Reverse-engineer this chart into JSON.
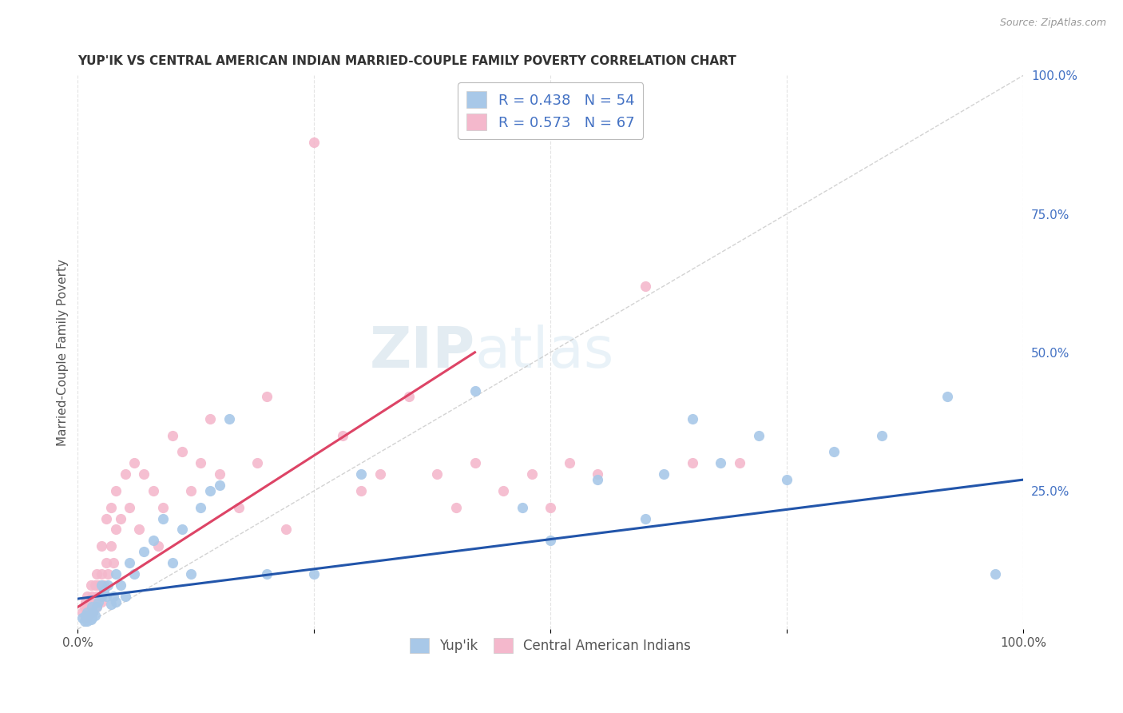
{
  "title": "YUP'IK VS CENTRAL AMERICAN INDIAN MARRIED-COUPLE FAMILY POVERTY CORRELATION CHART",
  "source": "Source: ZipAtlas.com",
  "ylabel": "Married-Couple Family Poverty",
  "xmin": 0.0,
  "xmax": 1.0,
  "ymin": 0.0,
  "ymax": 1.0,
  "xticks": [
    0.0,
    0.25,
    0.5,
    0.75,
    1.0
  ],
  "yticks": [
    0.0,
    0.25,
    0.5,
    0.75,
    1.0
  ],
  "xticklabels": [
    "0.0%",
    "",
    "",
    "",
    "100.0%"
  ],
  "yticklabels_right": [
    "",
    "25.0%",
    "50.0%",
    "75.0%",
    "100.0%"
  ],
  "legend1_label": "R = 0.438   N = 54",
  "legend2_label": "R = 0.573   N = 67",
  "legend_color1": "#a8c8e8",
  "legend_color2": "#f4b8cc",
  "scatter_color_blue": "#a8c8e8",
  "scatter_color_pink": "#f4b8cc",
  "line_color_blue": "#2255aa",
  "line_color_pink": "#dd4466",
  "diagonal_color": "#c8c8c8",
  "background_color": "#ffffff",
  "grid_color": "#e0e0e0",
  "watermark_zip": "ZIP",
  "watermark_atlas": "atlas",
  "title_color": "#333333",
  "label_color": "#555555",
  "right_tick_color": "#4472c4",
  "blue_line_start_x": 0.0,
  "blue_line_start_y": 0.055,
  "blue_line_end_x": 1.0,
  "blue_line_end_y": 0.27,
  "pink_line_start_x": 0.0,
  "pink_line_start_y": 0.04,
  "pink_line_end_x": 0.42,
  "pink_line_end_y": 0.5,
  "blue_x": [
    0.005,
    0.007,
    0.008,
    0.01,
    0.01,
    0.01,
    0.012,
    0.014,
    0.015,
    0.015,
    0.016,
    0.018,
    0.02,
    0.022,
    0.025,
    0.025,
    0.028,
    0.03,
    0.032,
    0.035,
    0.038,
    0.04,
    0.04,
    0.045,
    0.05,
    0.055,
    0.06,
    0.07,
    0.08,
    0.09,
    0.1,
    0.11,
    0.12,
    0.13,
    0.14,
    0.15,
    0.16,
    0.2,
    0.25,
    0.3,
    0.42,
    0.47,
    0.5,
    0.55,
    0.6,
    0.62,
    0.65,
    0.68,
    0.72,
    0.75,
    0.8,
    0.85,
    0.92,
    0.97
  ],
  "blue_y": [
    0.02,
    0.015,
    0.025,
    0.015,
    0.02,
    0.03,
    0.025,
    0.018,
    0.02,
    0.04,
    0.03,
    0.025,
    0.04,
    0.05,
    0.06,
    0.08,
    0.07,
    0.06,
    0.08,
    0.045,
    0.06,
    0.05,
    0.1,
    0.08,
    0.06,
    0.12,
    0.1,
    0.14,
    0.16,
    0.2,
    0.12,
    0.18,
    0.1,
    0.22,
    0.25,
    0.26,
    0.38,
    0.1,
    0.1,
    0.28,
    0.43,
    0.22,
    0.16,
    0.27,
    0.2,
    0.28,
    0.38,
    0.3,
    0.35,
    0.27,
    0.32,
    0.35,
    0.42,
    0.1
  ],
  "pink_x": [
    0.005,
    0.007,
    0.008,
    0.008,
    0.009,
    0.01,
    0.01,
    0.01,
    0.012,
    0.013,
    0.014,
    0.015,
    0.015,
    0.016,
    0.018,
    0.018,
    0.02,
    0.02,
    0.02,
    0.022,
    0.025,
    0.025,
    0.025,
    0.028,
    0.03,
    0.03,
    0.032,
    0.035,
    0.035,
    0.038,
    0.04,
    0.04,
    0.045,
    0.05,
    0.055,
    0.06,
    0.065,
    0.07,
    0.08,
    0.085,
    0.09,
    0.1,
    0.11,
    0.12,
    0.13,
    0.14,
    0.15,
    0.17,
    0.19,
    0.2,
    0.22,
    0.25,
    0.28,
    0.3,
    0.32,
    0.35,
    0.38,
    0.4,
    0.42,
    0.45,
    0.48,
    0.5,
    0.52,
    0.55,
    0.6,
    0.65,
    0.7
  ],
  "pink_y": [
    0.03,
    0.04,
    0.02,
    0.05,
    0.03,
    0.02,
    0.04,
    0.06,
    0.03,
    0.05,
    0.08,
    0.04,
    0.06,
    0.03,
    0.05,
    0.08,
    0.04,
    0.06,
    0.1,
    0.08,
    0.05,
    0.1,
    0.15,
    0.08,
    0.12,
    0.2,
    0.1,
    0.15,
    0.22,
    0.12,
    0.18,
    0.25,
    0.2,
    0.28,
    0.22,
    0.3,
    0.18,
    0.28,
    0.25,
    0.15,
    0.22,
    0.35,
    0.32,
    0.25,
    0.3,
    0.38,
    0.28,
    0.22,
    0.3,
    0.42,
    0.18,
    0.88,
    0.35,
    0.25,
    0.28,
    0.42,
    0.28,
    0.22,
    0.3,
    0.25,
    0.28,
    0.22,
    0.3,
    0.28,
    0.62,
    0.3,
    0.3
  ]
}
